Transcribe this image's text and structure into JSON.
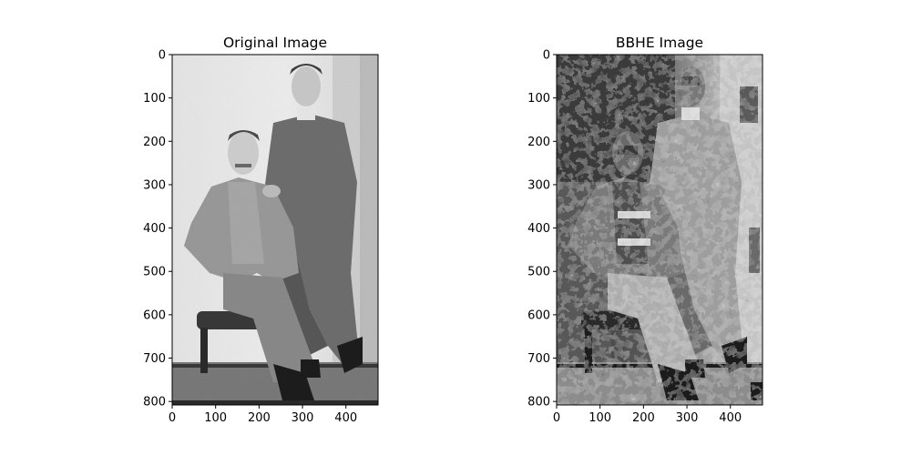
{
  "panels": [
    {
      "title": "Original Image",
      "image_kind": "grayscale photograph of two men, one seated on a chair and one standing behind with a hand on his shoulder",
      "xticks": [
        "0",
        "100",
        "200",
        "300",
        "400"
      ],
      "yticks": [
        "0",
        "100",
        "200",
        "300",
        "400",
        "500",
        "600",
        "700",
        "800"
      ]
    },
    {
      "title": "BBHE Image",
      "image_kind": "histogram-equalized (BBHE) version of the same photograph with strong posterized contrast",
      "xticks": [
        "0",
        "100",
        "200",
        "300",
        "400"
      ],
      "yticks": [
        "0",
        "100",
        "200",
        "300",
        "400",
        "500",
        "600",
        "700",
        "800"
      ]
    }
  ],
  "image_extent": {
    "width": 474,
    "height": 808
  },
  "colors": {
    "axis": "#000000",
    "background": "#ffffff"
  }
}
